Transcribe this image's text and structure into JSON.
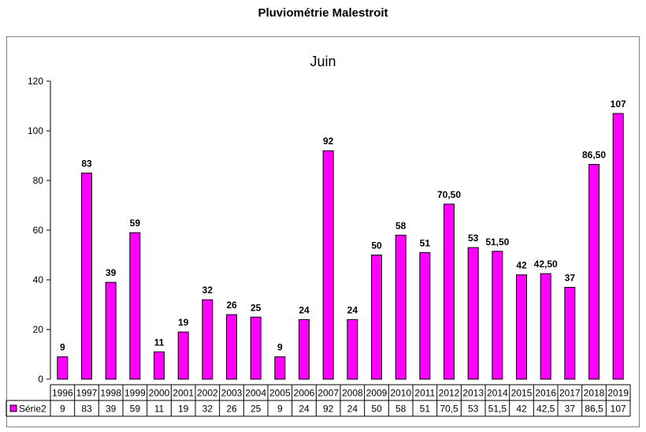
{
  "page": {
    "title": "Pluviométrie Malestroit"
  },
  "chart_data": {
    "type": "bar",
    "title": "Juin",
    "xlabel": "",
    "ylabel": "",
    "ylim": [
      0,
      120
    ],
    "yticks": [
      0,
      20,
      40,
      60,
      80,
      100,
      120
    ],
    "grid": false,
    "legend": "data-table",
    "bar_color": "#FF00FF",
    "categories": [
      "1996",
      "1997",
      "1998",
      "1999",
      "2000",
      "2001",
      "2002",
      "2003",
      "2004",
      "2005",
      "2006",
      "2007",
      "2008",
      "2009",
      "2010",
      "2011",
      "2012",
      "2013",
      "2014",
      "2015",
      "2016",
      "2017",
      "2018",
      "2019"
    ],
    "series": [
      {
        "name": "Série2",
        "values": [
          9,
          83,
          39,
          59,
          11,
          19,
          32,
          26,
          25,
          9,
          24,
          92,
          24,
          50,
          58,
          51,
          70.5,
          53,
          51.5,
          42,
          42.5,
          37,
          86.5,
          107
        ],
        "data_labels": [
          "9",
          "83",
          "39",
          "59",
          "11",
          "19",
          "32",
          "26",
          "25",
          "9",
          "24",
          "92",
          "24",
          "50",
          "58",
          "51",
          "70,50",
          "53",
          "51,50",
          "42",
          "42,50",
          "37",
          "86,50",
          "107"
        ],
        "table_values": [
          "9",
          "83",
          "39",
          "59",
          "11",
          "19",
          "32",
          "26",
          "25",
          "9",
          "24",
          "92",
          "24",
          "50",
          "58",
          "51",
          "70,5",
          "53",
          "51,5",
          "42",
          "42,5",
          "37",
          "86,5",
          "107"
        ]
      }
    ]
  }
}
